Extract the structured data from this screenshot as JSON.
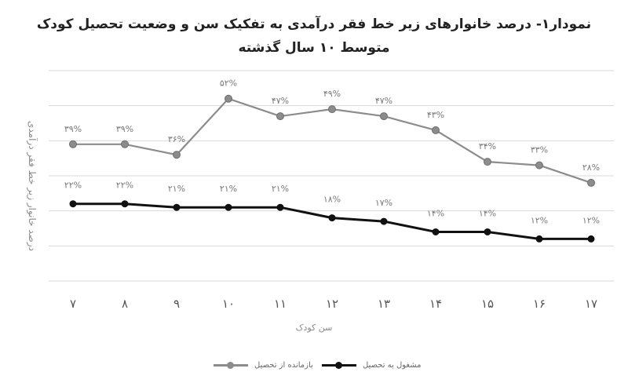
{
  "title_lines": [
    "نمودار۱- درصد خانوارهای زیر خط فقر درآمدی به تفکیک سن و وضعیت تحصیل کودک",
    "متوسط ۱۰ سال گذشته"
  ],
  "chart_data": {
    "type": "line",
    "xlabel": "سن کودک",
    "ylabel": "درصد خانوار زیر خط فقر درآمدی",
    "categories": [
      "۷",
      "۸",
      "۹",
      "۱۰",
      "۱۱",
      "۱۲",
      "۱۳",
      "۱۴",
      "۱۵",
      "۱۶",
      "۱۷"
    ],
    "ylim": [
      0,
      60
    ],
    "grid": true,
    "legend_position": "bottom",
    "series": [
      {
        "name": "بازمانده از تحصیل",
        "color": "#8c8c8c",
        "values": [
          39,
          39,
          36,
          52,
          47,
          49,
          47,
          43,
          34,
          33,
          28
        ],
        "labels": [
          "۳۹%",
          "۳۹%",
          "۳۶%",
          "۵۲%",
          "۴۷%",
          "۴۹%",
          "۴۷%",
          "۴۳%",
          "۳۴%",
          "۳۳%",
          "۲۸%"
        ]
      },
      {
        "name": "مشغول به تحصیل",
        "color": "#111111",
        "values": [
          22,
          22,
          21,
          21,
          21,
          18,
          17,
          14,
          14,
          12,
          12
        ],
        "labels": [
          "۲۲%",
          "۲۲%",
          "۲۱%",
          "۲۱%",
          "۲۱%",
          "۱۸%",
          "۱۷%",
          "۱۴%",
          "۱۴%",
          "۱۲%",
          "۱۲%"
        ]
      }
    ]
  }
}
